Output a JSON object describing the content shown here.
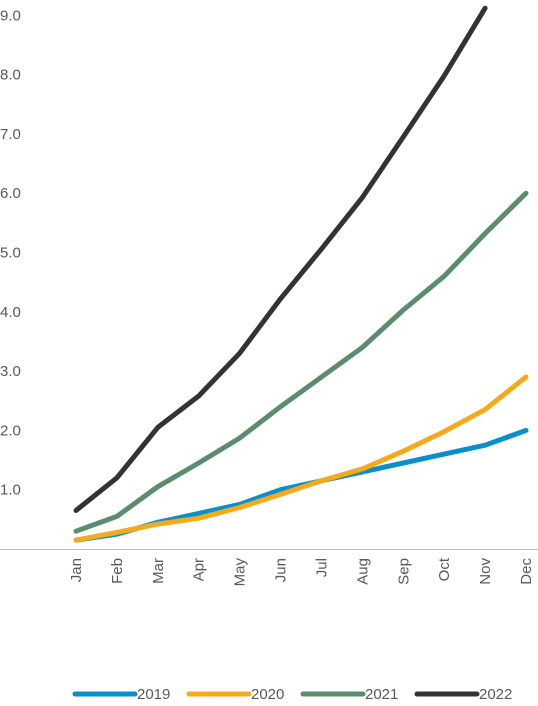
{
  "chart_data": {
    "type": "line",
    "title": "",
    "xlabel": "",
    "ylabel": "",
    "categories": [
      "Jan",
      "Feb",
      "Mar",
      "Apr",
      "May",
      "Jun",
      "Jul",
      "Aug",
      "Sep",
      "Oct",
      "Nov",
      "Dec"
    ],
    "yticks": [
      "1.0",
      "2.0",
      "3.0",
      "4.0",
      "5.0",
      "6.0",
      "7.0",
      "8.0",
      "9.0"
    ],
    "ylim": [
      0,
      9.3
    ],
    "grid": false,
    "legend_position": "bottom-right",
    "series": [
      {
        "name": "2019",
        "color": "#0A8FCB",
        "values": [
          0.15,
          0.25,
          0.45,
          0.6,
          0.75,
          1.0,
          1.15,
          1.3,
          1.45,
          1.6,
          1.75,
          2.0
        ]
      },
      {
        "name": "2020",
        "color": "#F5AA1C",
        "values": [
          0.15,
          0.28,
          0.42,
          0.52,
          0.7,
          0.92,
          1.15,
          1.35,
          1.65,
          1.98,
          2.35,
          2.9
        ]
      },
      {
        "name": "2021",
        "color": "#5B8C6E",
        "values": [
          0.3,
          0.55,
          1.05,
          1.45,
          1.87,
          2.4,
          2.9,
          3.4,
          4.03,
          4.6,
          5.32,
          6.0
        ]
      },
      {
        "name": "2022",
        "color": "#333333",
        "values": [
          0.65,
          1.2,
          2.05,
          2.58,
          3.3,
          4.22,
          5.06,
          5.93,
          6.95,
          7.98,
          9.12,
          null
        ]
      }
    ]
  }
}
